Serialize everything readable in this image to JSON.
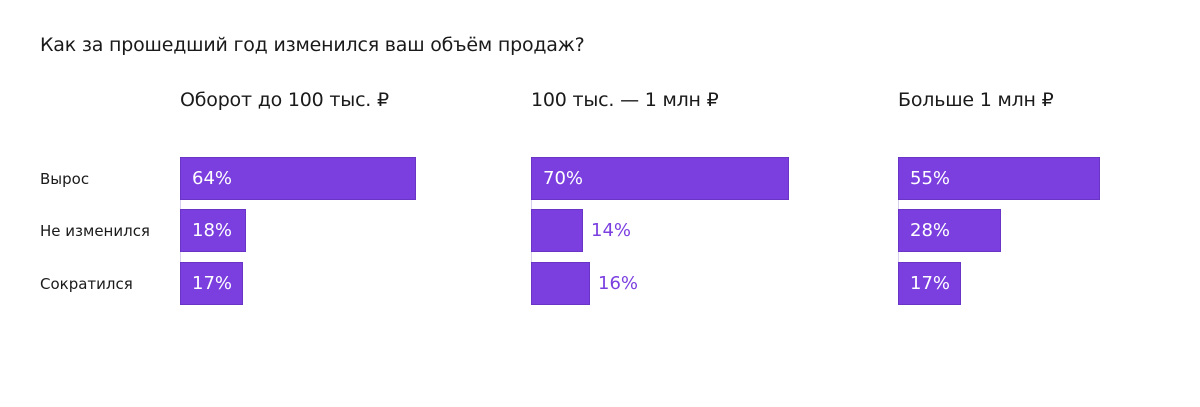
{
  "title": "Как за прошедший год изменился ваш объём продаж?",
  "categories": [
    "Вырос",
    "Не изменился",
    "Сократился"
  ],
  "panels": [
    {
      "title": "Оборот до 100 тыс. ₽",
      "values": [
        64,
        18,
        17
      ],
      "labels": [
        "64%",
        "18%",
        "17%"
      ]
    },
    {
      "title": "100 тыс. — 1 млн ₽",
      "values": [
        70,
        14,
        16
      ],
      "labels": [
        "70%",
        "14%",
        "16%"
      ]
    },
    {
      "title": "Больше 1 млн ₽",
      "values": [
        55,
        28,
        17
      ],
      "labels": [
        "55%",
        "28%",
        "17%"
      ]
    }
  ],
  "colors": {
    "bar": "#7b3fe0",
    "text": "#1a1a1a"
  },
  "chart_data": [
    {
      "type": "bar",
      "orientation": "horizontal",
      "title": "Оборот до 100 тыс. ₽",
      "categories": [
        "Вырос",
        "Не изменился",
        "Сократился"
      ],
      "values": [
        64,
        18,
        17
      ],
      "unit": "%"
    },
    {
      "type": "bar",
      "orientation": "horizontal",
      "title": "100 тыс. — 1 млн ₽",
      "categories": [
        "Вырос",
        "Не изменился",
        "Сократился"
      ],
      "values": [
        70,
        14,
        16
      ],
      "unit": "%"
    },
    {
      "type": "bar",
      "orientation": "horizontal",
      "title": "Больше 1 млн ₽",
      "categories": [
        "Вырос",
        "Не изменился",
        "Сократился"
      ],
      "values": [
        55,
        28,
        17
      ],
      "unit": "%"
    }
  ]
}
